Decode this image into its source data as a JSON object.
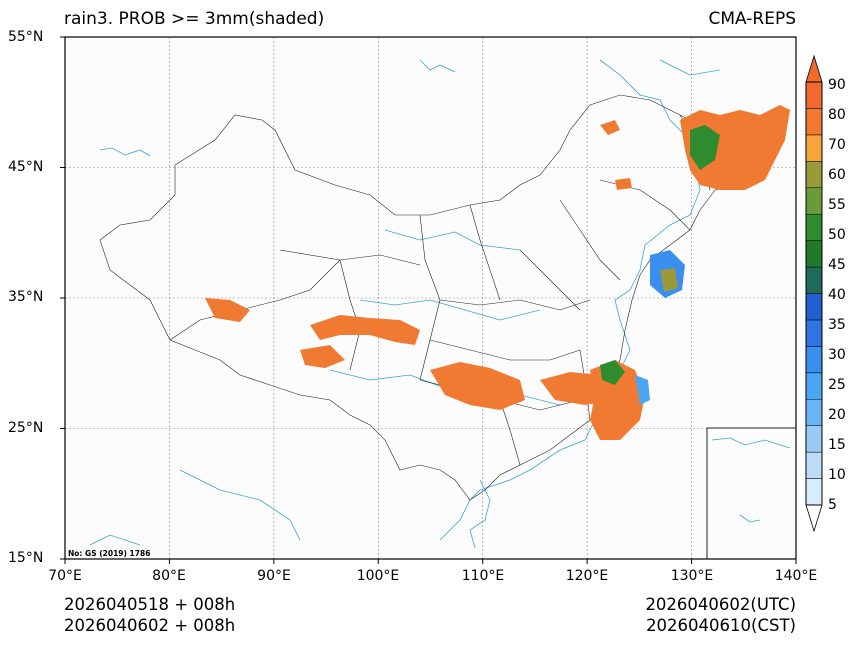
{
  "header": {
    "title": "rain3. PROB >= 3mm(shaded)",
    "model": "CMA-REPS"
  },
  "map": {
    "lat_labels": [
      "55°N",
      "45°N",
      "35°N",
      "25°N",
      "15°N"
    ],
    "lon_labels": [
      "70°E",
      "80°E",
      "90°E",
      "100°E",
      "110°E",
      "120°E",
      "130°E",
      "140°E"
    ],
    "lat_values": [
      55,
      45,
      35,
      25,
      15
    ],
    "lon_values": [
      70,
      80,
      90,
      100,
      110,
      120,
      130,
      140
    ],
    "extent": {
      "lon_min": 70,
      "lon_max": 140,
      "lat_min": 15,
      "lat_max": 55
    },
    "map_number": "No: GS (2019) 1786"
  },
  "colorbar": {
    "levels": [
      "5",
      "10",
      "15",
      "20",
      "25",
      "30",
      "35",
      "40",
      "45",
      "50",
      "55",
      "60",
      "70",
      "80",
      "90"
    ],
    "colors": [
      "#d8ecfb",
      "#bcdcf6",
      "#9acbf2",
      "#68b6f3",
      "#4aa6f2",
      "#3a8eed",
      "#2f74e0",
      "#1f5fd0",
      "#1f6a5a",
      "#217a2a",
      "#2e8b2e",
      "#6b9a3a",
      "#9a9a3a",
      "#f6a53a",
      "#f07a32",
      "#f06a30"
    ],
    "over_color": "#f06a30",
    "under_color": "#ffffff"
  },
  "footer": {
    "init_line1": "2026040518  +  008h",
    "init_line2": "2026040602  +  008h",
    "valid_utc": "2026040602(UTC)",
    "valid_cst": "2026040610(CST)"
  }
}
